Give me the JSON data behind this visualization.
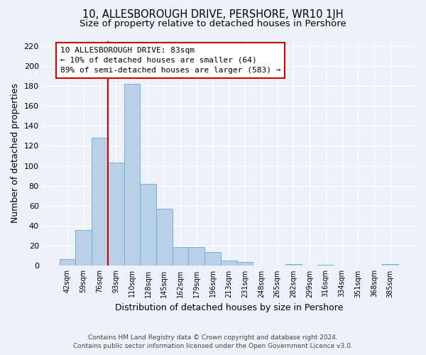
{
  "title": "10, ALLESBOROUGH DRIVE, PERSHORE, WR10 1JH",
  "subtitle": "Size of property relative to detached houses in Pershore",
  "xlabel": "Distribution of detached houses by size in Pershore",
  "ylabel": "Number of detached properties",
  "footer_line1": "Contains HM Land Registry data © Crown copyright and database right 2024.",
  "footer_line2": "Contains public sector information licensed under the Open Government Licence v3.0.",
  "bin_labels": [
    "42sqm",
    "59sqm",
    "76sqm",
    "93sqm",
    "110sqm",
    "128sqm",
    "145sqm",
    "162sqm",
    "179sqm",
    "196sqm",
    "213sqm",
    "231sqm",
    "248sqm",
    "265sqm",
    "282sqm",
    "299sqm",
    "316sqm",
    "334sqm",
    "351sqm",
    "368sqm",
    "385sqm"
  ],
  "bar_heights": [
    7,
    36,
    128,
    103,
    182,
    82,
    57,
    19,
    19,
    14,
    5,
    4,
    0,
    0,
    2,
    0,
    1,
    0,
    0,
    0,
    2
  ],
  "bar_color": "#b8d0e8",
  "bar_edge_color": "#7aafd4",
  "vline_idx": 2,
  "vline_color": "#cc0000",
  "annotation_line1": "10 ALLESBOROUGH DRIVE: 83sqm",
  "annotation_line2": "← 10% of detached houses are smaller (64)",
  "annotation_line3": "89% of semi-detached houses are larger (583) →",
  "annotation_box_color": "#ffffff",
  "annotation_box_edge": "#cc0000",
  "ylim": [
    0,
    225
  ],
  "yticks": [
    0,
    20,
    40,
    60,
    80,
    100,
    120,
    140,
    160,
    180,
    200,
    220
  ],
  "background_color": "#edf2f9",
  "grid_color": "#ffffff",
  "title_fontsize": 10.5,
  "subtitle_fontsize": 9.5,
  "ylabel_fontsize": 9,
  "xlabel_fontsize": 9
}
